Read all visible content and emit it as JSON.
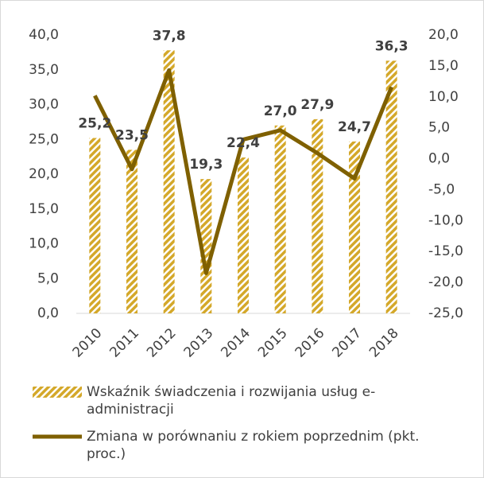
{
  "chart_data": {
    "type": "bar-line",
    "categories": [
      "2010",
      "2011",
      "2012",
      "2013",
      "2014",
      "2015",
      "2016",
      "2017",
      "2018"
    ],
    "series": [
      {
        "name": "Wskaźnik świadczenia i rozwijania usług e-administracji",
        "type": "bar",
        "color": "#d4a82a",
        "values": [
          25.2,
          23.5,
          37.8,
          19.3,
          22.4,
          27.0,
          27.9,
          24.7,
          36.3
        ],
        "value_labels": [
          "25,2",
          "23,5",
          "37,8",
          "19,3",
          "22,4",
          "27,0",
          "27,9",
          "24,7",
          "36,3"
        ]
      },
      {
        "name": "Zmiana w porównaniu z rokiem poprzednim (pkt. proc.)",
        "type": "line",
        "color": "#7f6000",
        "axis": "y2",
        "values": [
          10.2,
          -1.7,
          14.3,
          -18.5,
          3.1,
          4.6,
          0.9,
          -3.2,
          11.6
        ]
      }
    ],
    "ylim": [
      0,
      40
    ],
    "yticks": [
      {
        "value": 0,
        "label": "0,0"
      },
      {
        "value": 5,
        "label": "5,0"
      },
      {
        "value": 10,
        "label": "10,0"
      },
      {
        "value": 15,
        "label": "15,0"
      },
      {
        "value": 20,
        "label": "20,0"
      },
      {
        "value": 25,
        "label": "25,0"
      },
      {
        "value": 30,
        "label": "30,0"
      },
      {
        "value": 35,
        "label": "35,0"
      },
      {
        "value": 40,
        "label": "40,0"
      }
    ],
    "y2lim": [
      -25,
      20
    ],
    "y2ticks": [
      {
        "value": -25,
        "label": "-25,0"
      },
      {
        "value": -20,
        "label": "-20,0"
      },
      {
        "value": -15,
        "label": "-15,0"
      },
      {
        "value": -10,
        "label": "-10,0"
      },
      {
        "value": -5,
        "label": "-5,0"
      },
      {
        "value": 0,
        "label": "0,0"
      },
      {
        "value": 5,
        "label": "5,0"
      },
      {
        "value": 10,
        "label": "10,0"
      },
      {
        "value": 15,
        "label": "15,0"
      },
      {
        "value": 20,
        "label": "20,0"
      }
    ],
    "legend": "bottom"
  }
}
